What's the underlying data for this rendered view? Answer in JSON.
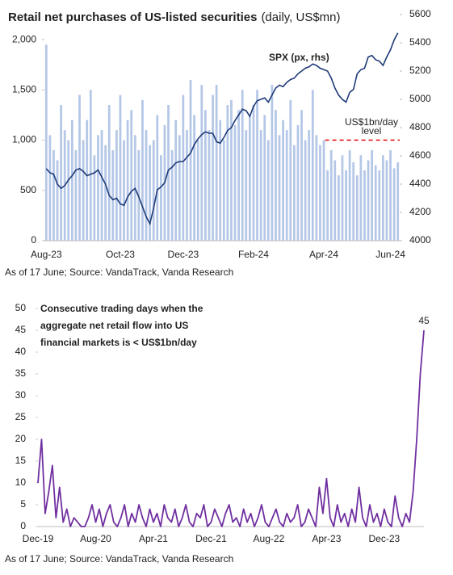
{
  "chart_data": [
    {
      "type": "bar",
      "title": "Retail net purchases of US-listed securities",
      "title_units": "(daily, US$mn)",
      "categories": [
        "Aug-23",
        null,
        null,
        null,
        null,
        null,
        null,
        null,
        null,
        null,
        null,
        null,
        null,
        null,
        null,
        null,
        null,
        null,
        null,
        null,
        "Oct-23",
        null,
        null,
        null,
        null,
        null,
        null,
        null,
        null,
        null,
        null,
        null,
        null,
        null,
        null,
        null,
        null,
        "Dec-23",
        null,
        null,
        null,
        null,
        null,
        null,
        null,
        null,
        null,
        null,
        null,
        null,
        null,
        null,
        null,
        null,
        null,
        null,
        "Feb-24",
        null,
        null,
        null,
        null,
        null,
        null,
        null,
        null,
        null,
        null,
        null,
        null,
        null,
        null,
        null,
        null,
        null,
        null,
        "Apr-24",
        null,
        null,
        null,
        null,
        null,
        null,
        null,
        null,
        null,
        null,
        null,
        null,
        null,
        null,
        null,
        null,
        null,
        "Jun-24",
        null,
        null
      ],
      "series": [
        {
          "type": "bar",
          "color": "#b4c7e7",
          "values": [
            1950,
            1050,
            900,
            800,
            1350,
            1100,
            1000,
            1200,
            900,
            1450,
            1000,
            1200,
            1500,
            850,
            1050,
            1100,
            950,
            1350,
            900,
            1100,
            1450,
            1000,
            1200,
            1300,
            1050,
            900,
            1400,
            1100,
            950,
            1000,
            1250,
            850,
            1150,
            1350,
            900,
            1200,
            1050,
            1450,
            1100,
            1600,
            1250,
            1000,
            1550,
            1300,
            1100,
            1450,
            1550,
            1200,
            1000,
            1350,
            1400,
            1150,
            1300,
            1500,
            1100,
            1250,
            1350,
            1500,
            1100,
            1250,
            1000,
            1550,
            1300,
            1050,
            1200,
            1100,
            1400,
            950,
            1150,
            1300,
            1000,
            1100,
            1500,
            1050,
            950,
            1000,
            700,
            900,
            800,
            650,
            850,
            700,
            900,
            780,
            650,
            850,
            700,
            800,
            900,
            750,
            700,
            850,
            800,
            900,
            720,
            780
          ]
        },
        {
          "type": "line",
          "name": "SPX (px, rhs)",
          "axis": "y2",
          "color": "#1f3a78",
          "values": [
            4510,
            4480,
            4470,
            4400,
            4370,
            4390,
            4430,
            4460,
            4500,
            4510,
            4490,
            4460,
            4470,
            4480,
            4500,
            4450,
            4400,
            4320,
            4290,
            4300,
            4260,
            4250,
            4310,
            4350,
            4370,
            4310,
            4240,
            4170,
            4120,
            4230,
            4360,
            4380,
            4410,
            4500,
            4520,
            4550,
            4560,
            4560,
            4590,
            4620,
            4680,
            4720,
            4750,
            4770,
            4760,
            4760,
            4700,
            4690,
            4730,
            4780,
            4800,
            4850,
            4890,
            4930,
            4920,
            4880,
            4950,
            4990,
            5000,
            5010,
            4980,
            5030,
            5080,
            5100,
            5090,
            5120,
            5140,
            5150,
            5180,
            5200,
            5220,
            5230,
            5250,
            5240,
            5220,
            5210,
            5200,
            5150,
            5080,
            5030,
            5000,
            4980,
            5050,
            5070,
            5180,
            5210,
            5220,
            5300,
            5310,
            5280,
            5270,
            5240,
            5300,
            5350,
            5420,
            5470
          ]
        }
      ],
      "ylim": [
        0,
        2250
      ],
      "yticks": [
        0,
        500,
        {
          "value": 1000,
          "label": "1,000"
        },
        {
          "value": 1500,
          "label": "1,500"
        },
        {
          "value": 2000,
          "label": "2,000"
        }
      ],
      "y2lim": [
        4000,
        5600
      ],
      "y2ticks": [
        4000,
        4200,
        4400,
        4600,
        4800,
        5000,
        5200,
        5400,
        5600
      ],
      "reference_line": {
        "value": 1000,
        "label": [
          "US$1bn/day",
          "level"
        ],
        "color": "#e00000"
      },
      "source": "As of 17 June; Source: VandaTrack, Vanda Research"
    },
    {
      "type": "line",
      "title": [
        "Consecutive trading days when the",
        "aggregate net retail flow into US",
        "financial markets is < US$1bn/day"
      ],
      "categories": [
        "Dec-19",
        null,
        null,
        null,
        null,
        null,
        null,
        null,
        null,
        null,
        null,
        null,
        null,
        null,
        null,
        null,
        "Aug-20",
        null,
        null,
        null,
        null,
        null,
        null,
        null,
        null,
        null,
        null,
        null,
        null,
        null,
        null,
        null,
        "Apr-21",
        null,
        null,
        null,
        null,
        null,
        null,
        null,
        null,
        null,
        null,
        null,
        null,
        null,
        null,
        null,
        "Dec-21",
        null,
        null,
        null,
        null,
        null,
        null,
        null,
        null,
        null,
        null,
        null,
        null,
        null,
        null,
        null,
        "Aug-22",
        null,
        null,
        null,
        null,
        null,
        null,
        null,
        null,
        null,
        null,
        null,
        null,
        null,
        null,
        null,
        "Apr-23",
        null,
        null,
        null,
        null,
        null,
        null,
        null,
        null,
        null,
        null,
        null,
        null,
        null,
        null,
        null,
        "Dec-23",
        null,
        null,
        null,
        null,
        null,
        null,
        null,
        null,
        null,
        null,
        null
      ],
      "series": [
        {
          "color": "#7030a0",
          "values": [
            10,
            20,
            3,
            8,
            14,
            2,
            9,
            1,
            4,
            0,
            2,
            1,
            0,
            0,
            2,
            5,
            1,
            4,
            0,
            3,
            5,
            1,
            0,
            2,
            5,
            0,
            3,
            1,
            5,
            2,
            0,
            4,
            1,
            3,
            0,
            5,
            2,
            1,
            4,
            0,
            2,
            5,
            1,
            0,
            3,
            2,
            5,
            0,
            1,
            4,
            2,
            0,
            3,
            5,
            1,
            2,
            0,
            4,
            1,
            3,
            0,
            2,
            5,
            1,
            0,
            2,
            4,
            1,
            0,
            3,
            1,
            2,
            5,
            0,
            1,
            4,
            2,
            0,
            9,
            3,
            11,
            2,
            0,
            5,
            1,
            3,
            0,
            4,
            1,
            9,
            2,
            0,
            5,
            1,
            3,
            0,
            4,
            1,
            0,
            7,
            2,
            0,
            3,
            1,
            8,
            20,
            35,
            45
          ]
        }
      ],
      "ylim": [
        0,
        50
      ],
      "yticks": [
        0,
        5,
        10,
        15,
        20,
        25,
        30,
        35,
        40,
        45,
        50
      ],
      "label_last": true,
      "label_color": "#e00000",
      "source": "As of 17 June; Source: VandaTrack, Vanda Research"
    }
  ]
}
